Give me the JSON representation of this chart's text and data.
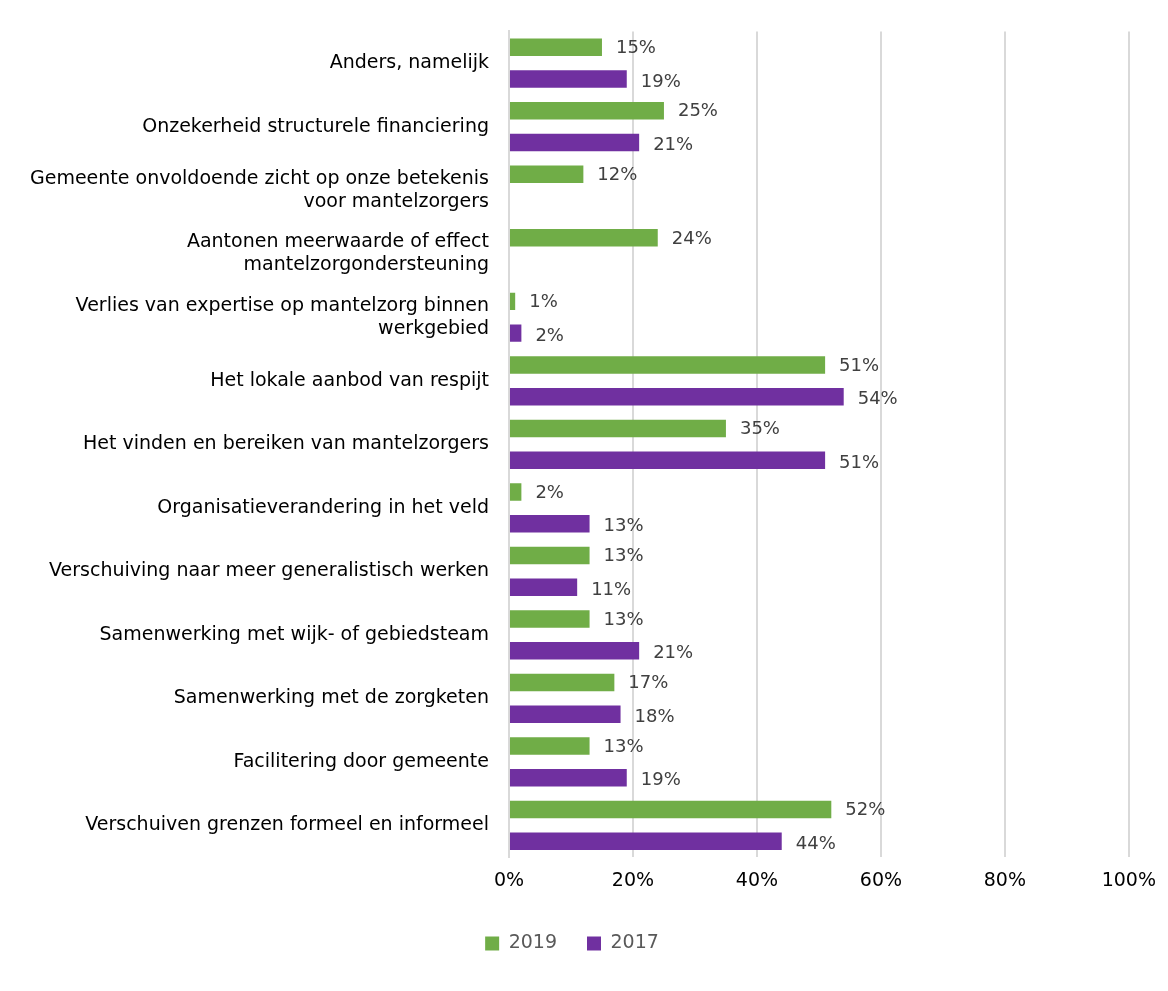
{
  "chart_data": {
    "type": "bar",
    "orientation": "horizontal",
    "categories": [
      "Anders, namelijk",
      "Onzekerheid structurele financiering",
      "Gemeente onvoldoende zicht op onze betekenis voor mantelzorgers",
      "Aantonen meerwaarde of effect mantelzorgondersteuning",
      "Verlies van expertise op mantelzorg binnen werkgebied",
      "Het lokale aanbod van respijt",
      "Het vinden en bereiken van mantelzorgers",
      "Organisatieverandering in het veld",
      "Verschuiving naar meer generalistisch werken",
      "Samenwerking met wijk- of gebiedsteam",
      "Samenwerking met de zorgketen",
      "Facilitering door gemeente",
      "Verschuiven grenzen formeel en informeel"
    ],
    "series": [
      {
        "name": "2019",
        "color": "#70ad47",
        "values": [
          15,
          25,
          12,
          24,
          1,
          51,
          35,
          2,
          13,
          13,
          17,
          13,
          52
        ],
        "value_labels": [
          "15%",
          "25%",
          "12%",
          "24%",
          "1%",
          "51%",
          "35%",
          "2%",
          "13%",
          "13%",
          "17%",
          "13%",
          "52%"
        ]
      },
      {
        "name": "2017",
        "color": "#7030a0",
        "values": [
          19,
          21,
          null,
          null,
          2,
          54,
          51,
          13,
          11,
          21,
          18,
          19,
          44
        ],
        "value_labels": [
          "19%",
          "21%",
          null,
          null,
          "2%",
          "54%",
          "51%",
          "13%",
          "11%",
          "21%",
          "18%",
          "19%",
          "44%"
        ]
      }
    ],
    "xlim": [
      0,
      100
    ],
    "xticks": [
      {
        "value": 0,
        "label": "0%"
      },
      {
        "value": 20,
        "label": "20%"
      },
      {
        "value": 40,
        "label": "40%"
      },
      {
        "value": 60,
        "label": "60%"
      },
      {
        "value": 80,
        "label": "80%"
      },
      {
        "value": 100,
        "label": "100%"
      }
    ],
    "grid": "x",
    "legend": "bottom"
  }
}
